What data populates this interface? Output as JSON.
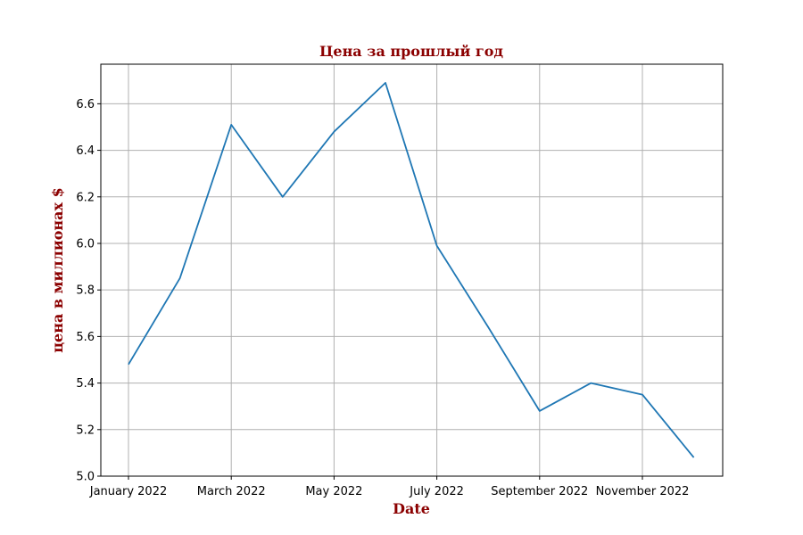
{
  "chart_data": {
    "type": "line",
    "title": "Цена за прошлый год",
    "xlabel": "Date",
    "ylabel": "цена в миллионах $",
    "title_color": "#8b0000",
    "line_color": "#1f77b4",
    "grid": true,
    "x": [
      "2022-01",
      "2022-02",
      "2022-03",
      "2022-04",
      "2022-05",
      "2022-06",
      "2022-07",
      "2022-08",
      "2022-09",
      "2022-10",
      "2022-11",
      "2022-12"
    ],
    "x_ticks": [
      {
        "value": "2022-01",
        "label": "January 2022"
      },
      {
        "value": "2022-03",
        "label": "March 2022"
      },
      {
        "value": "2022-05",
        "label": "May 2022"
      },
      {
        "value": "2022-07",
        "label": "July 2022"
      },
      {
        "value": "2022-09",
        "label": "September 2022"
      },
      {
        "value": "2022-11",
        "label": "November 2022"
      }
    ],
    "series": [
      {
        "values": [
          5.48,
          5.85,
          6.51,
          6.2,
          6.48,
          6.69,
          5.99,
          5.64,
          5.28,
          5.4,
          5.35,
          5.08
        ]
      }
    ],
    "y_ticks": [
      "5.0",
      "5.2",
      "5.4",
      "5.6",
      "5.8",
      "6.0",
      "6.2",
      "6.4",
      "6.6"
    ],
    "ylim": [
      5.0,
      6.77
    ]
  }
}
